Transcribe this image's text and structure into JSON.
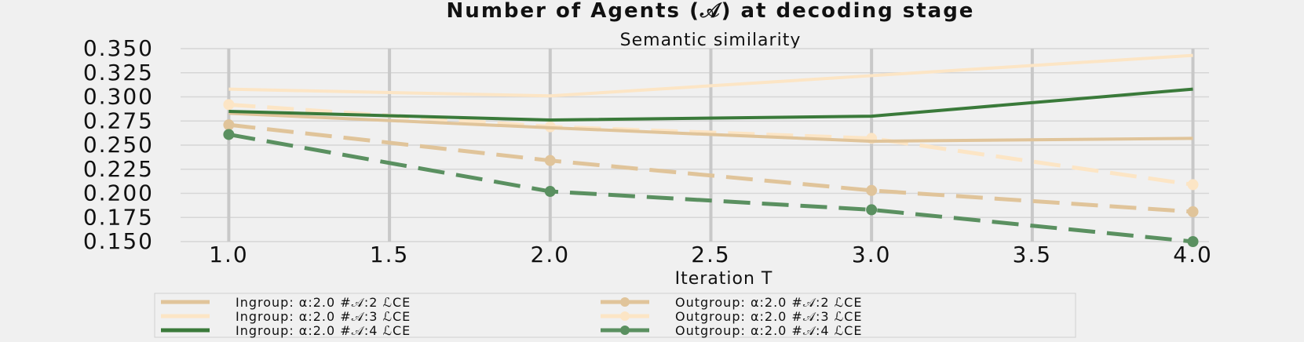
{
  "chart_data": {
    "type": "line",
    "title": "Number of Agents (𝒜) at decoding stage",
    "subtitle": "Semantic similarity",
    "xlabel": "Iteration T",
    "ylabel": "",
    "x": [
      1,
      2,
      3,
      4
    ],
    "xlim": [
      0.85,
      4.05
    ],
    "ylim": [
      0.15,
      0.35
    ],
    "xticks": [
      "1.0",
      "1.5",
      "2.0",
      "2.5",
      "3.0",
      "3.5",
      "4.0"
    ],
    "yticks": [
      "0.150",
      "0.175",
      "0.200",
      "0.225",
      "0.250",
      "0.275",
      "0.300",
      "0.325",
      "0.350"
    ],
    "grid": true,
    "legend_position": "bottom",
    "series": [
      {
        "name": "Ingroup: α:2.0 #𝒜:2 ℒCE",
        "values": [
          0.283,
          0.268,
          0.254,
          0.257
        ],
        "color": "#e0c49a",
        "dash": false,
        "marker": false
      },
      {
        "name": "Ingroup: α:2.0 #𝒜:3 ℒCE",
        "values": [
          0.308,
          0.301,
          0.322,
          0.343
        ],
        "color": "#fce5c5",
        "dash": false,
        "marker": false
      },
      {
        "name": "Ingroup: α:2.0 #𝒜:4 ℒCE",
        "values": [
          0.285,
          0.276,
          0.28,
          0.308
        ],
        "color": "#3a7a3a",
        "dash": false,
        "marker": false
      },
      {
        "name": "Outgroup: α:2.0 #𝒜:2 ℒCE",
        "values": [
          0.271,
          0.234,
          0.203,
          0.181
        ],
        "color": "#e0c49a",
        "dash": true,
        "marker": true
      },
      {
        "name": "Outgroup: α:2.0 #𝒜:3 ℒCE",
        "values": [
          0.292,
          0.269,
          0.257,
          0.209
        ],
        "color": "#fce5c5",
        "dash": true,
        "marker": true
      },
      {
        "name": "Outgroup: α:2.0 #𝒜:4 ℒCE",
        "values": [
          0.261,
          0.202,
          0.183,
          0.15
        ],
        "color": "#5a9060",
        "dash": true,
        "marker": true
      }
    ]
  }
}
